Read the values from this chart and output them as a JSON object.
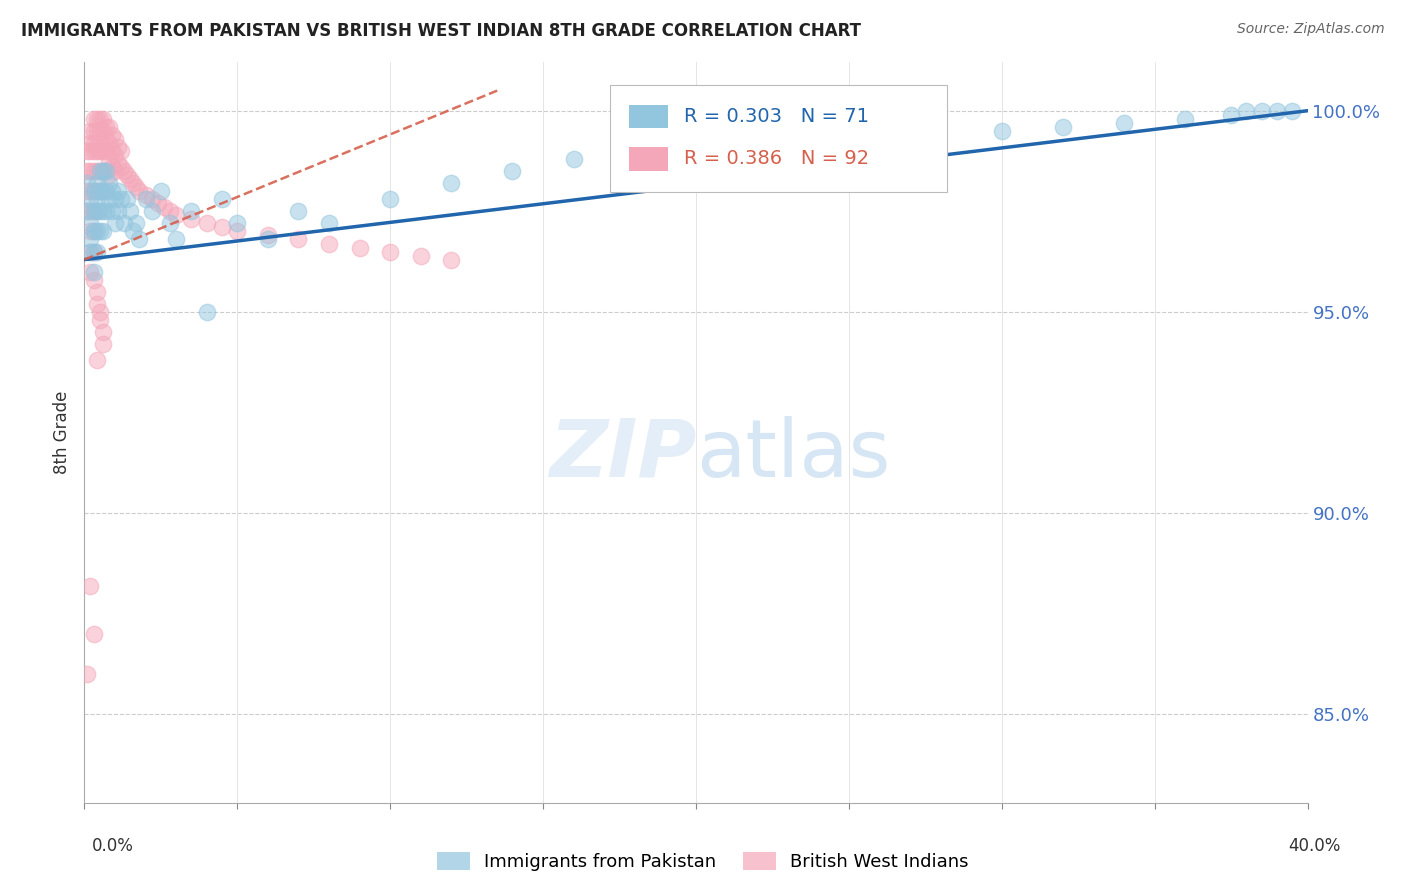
{
  "title": "IMMIGRANTS FROM PAKISTAN VS BRITISH WEST INDIAN 8TH GRADE CORRELATION CHART",
  "source": "Source: ZipAtlas.com",
  "ylabel_label": "8th Grade",
  "ytick_vals": [
    1.0,
    0.95,
    0.9,
    0.85
  ],
  "ytick_labels": [
    "100.0%",
    "95.0%",
    "90.0%",
    "85.0%"
  ],
  "xlim": [
    0.0,
    0.4
  ],
  "ylim": [
    0.828,
    1.012
  ],
  "legend1_R": "0.303",
  "legend1_N": "71",
  "legend2_R": "0.386",
  "legend2_N": "92",
  "blue_color": "#92c5de",
  "pink_color": "#f4a7b9",
  "trendline_blue": "#2166ac",
  "trendline_pink": "#d6604d",
  "watermark_text": "ZIPatlas",
  "legend_text_color_blue": "#2166ac",
  "legend_text_color_pink": "#d6604d",
  "pak_x": [
    0.001,
    0.001,
    0.002,
    0.002,
    0.002,
    0.002,
    0.003,
    0.003,
    0.003,
    0.003,
    0.003,
    0.004,
    0.004,
    0.004,
    0.004,
    0.004,
    0.005,
    0.005,
    0.005,
    0.005,
    0.006,
    0.006,
    0.006,
    0.006,
    0.007,
    0.007,
    0.007,
    0.008,
    0.008,
    0.009,
    0.009,
    0.01,
    0.01,
    0.011,
    0.011,
    0.012,
    0.013,
    0.014,
    0.015,
    0.016,
    0.017,
    0.018,
    0.02,
    0.022,
    0.025,
    0.028,
    0.03,
    0.035,
    0.04,
    0.045,
    0.05,
    0.06,
    0.07,
    0.08,
    0.1,
    0.12,
    0.14,
    0.16,
    0.18,
    0.2,
    0.22,
    0.26,
    0.3,
    0.32,
    0.34,
    0.36,
    0.375,
    0.385,
    0.38,
    0.395,
    0.39
  ],
  "pak_y": [
    0.975,
    0.982,
    0.978,
    0.972,
    0.968,
    0.965,
    0.98,
    0.975,
    0.97,
    0.965,
    0.96,
    0.982,
    0.978,
    0.975,
    0.97,
    0.965,
    0.985,
    0.98,
    0.975,
    0.97,
    0.985,
    0.98,
    0.975,
    0.97,
    0.985,
    0.98,
    0.975,
    0.982,
    0.978,
    0.98,
    0.975,
    0.978,
    0.972,
    0.98,
    0.975,
    0.978,
    0.972,
    0.978,
    0.975,
    0.97,
    0.972,
    0.968,
    0.978,
    0.975,
    0.98,
    0.972,
    0.968,
    0.975,
    0.95,
    0.978,
    0.972,
    0.968,
    0.975,
    0.972,
    0.978,
    0.982,
    0.985,
    0.988,
    0.988,
    0.99,
    0.992,
    0.993,
    0.995,
    0.996,
    0.997,
    0.998,
    0.999,
    1.0,
    1.0,
    1.0,
    1.0
  ],
  "bwi_x": [
    0.001,
    0.001,
    0.001,
    0.001,
    0.002,
    0.002,
    0.002,
    0.002,
    0.002,
    0.002,
    0.002,
    0.002,
    0.003,
    0.003,
    0.003,
    0.003,
    0.003,
    0.003,
    0.003,
    0.003,
    0.003,
    0.004,
    0.004,
    0.004,
    0.004,
    0.004,
    0.004,
    0.004,
    0.005,
    0.005,
    0.005,
    0.005,
    0.005,
    0.005,
    0.006,
    0.006,
    0.006,
    0.006,
    0.006,
    0.007,
    0.007,
    0.007,
    0.007,
    0.008,
    0.008,
    0.008,
    0.008,
    0.009,
    0.009,
    0.009,
    0.01,
    0.01,
    0.01,
    0.011,
    0.011,
    0.012,
    0.012,
    0.013,
    0.014,
    0.015,
    0.016,
    0.017,
    0.018,
    0.02,
    0.022,
    0.024,
    0.026,
    0.028,
    0.03,
    0.035,
    0.04,
    0.045,
    0.05,
    0.06,
    0.07,
    0.08,
    0.09,
    0.1,
    0.11,
    0.12,
    0.002,
    0.003,
    0.004,
    0.004,
    0.005,
    0.005,
    0.006,
    0.006,
    0.004,
    0.002,
    0.003,
    0.001
  ],
  "bwi_y": [
    0.99,
    0.985,
    0.98,
    0.975,
    0.995,
    0.992,
    0.99,
    0.985,
    0.98,
    0.975,
    0.97,
    0.965,
    0.998,
    0.995,
    0.992,
    0.99,
    0.985,
    0.98,
    0.975,
    0.97,
    0.965,
    0.998,
    0.995,
    0.992,
    0.99,
    0.985,
    0.98,
    0.975,
    0.998,
    0.995,
    0.992,
    0.99,
    0.985,
    0.98,
    0.998,
    0.995,
    0.99,
    0.985,
    0.98,
    0.996,
    0.993,
    0.99,
    0.985,
    0.996,
    0.992,
    0.988,
    0.984,
    0.994,
    0.99,
    0.986,
    0.993,
    0.989,
    0.985,
    0.991,
    0.987,
    0.99,
    0.986,
    0.985,
    0.984,
    0.983,
    0.982,
    0.981,
    0.98,
    0.979,
    0.978,
    0.977,
    0.976,
    0.975,
    0.974,
    0.973,
    0.972,
    0.971,
    0.97,
    0.969,
    0.968,
    0.967,
    0.966,
    0.965,
    0.964,
    0.963,
    0.96,
    0.958,
    0.955,
    0.952,
    0.95,
    0.948,
    0.945,
    0.942,
    0.938,
    0.882,
    0.87,
    0.86
  ]
}
